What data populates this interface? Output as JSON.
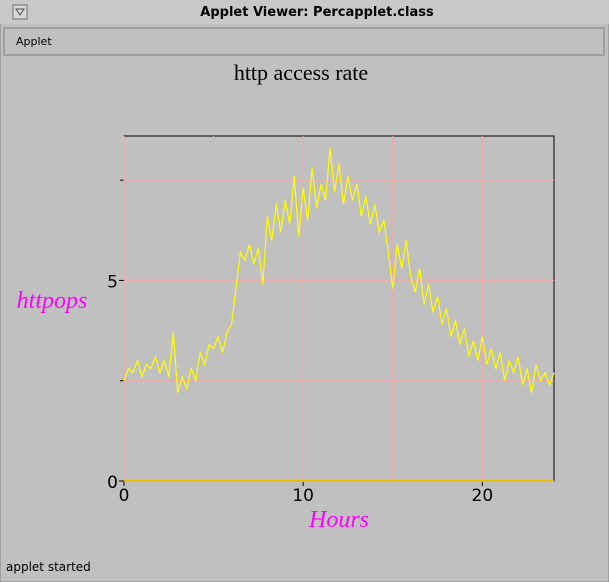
{
  "window": {
    "title": "Applet Viewer: Percapplet.class",
    "menu": "Applet",
    "status": "applet started"
  },
  "chart_data": {
    "type": "line",
    "title": "http access rate",
    "xlabel": "Hours",
    "ylabel": "httpops",
    "x": [
      0,
      0.25,
      0.5,
      0.75,
      1,
      1.25,
      1.5,
      1.75,
      2,
      2.25,
      2.5,
      2.75,
      3,
      3.25,
      3.5,
      3.75,
      4,
      4.25,
      4.5,
      4.75,
      5,
      5.25,
      5.5,
      5.75,
      6,
      6.25,
      6.5,
      6.75,
      7,
      7.25,
      7.5,
      7.75,
      8,
      8.25,
      8.5,
      8.75,
      9,
      9.25,
      9.5,
      9.75,
      10,
      10.25,
      10.5,
      10.75,
      11,
      11.25,
      11.5,
      11.75,
      12,
      12.25,
      12.5,
      12.75,
      13,
      13.25,
      13.5,
      13.75,
      14,
      14.25,
      14.5,
      14.75,
      15,
      15.25,
      15.5,
      15.75,
      16,
      16.25,
      16.5,
      16.75,
      17,
      17.25,
      17.5,
      17.75,
      18,
      18.25,
      18.5,
      18.75,
      19,
      19.25,
      19.5,
      19.75,
      20,
      20.25,
      20.5,
      20.75,
      21,
      21.25,
      21.5,
      21.75,
      22,
      22.25,
      22.5,
      22.75,
      23,
      23.25,
      23.5,
      23.75,
      24
    ],
    "values": [
      2.5,
      2.8,
      2.7,
      3.0,
      2.6,
      2.9,
      2.8,
      3.1,
      2.7,
      3.0,
      2.6,
      3.7,
      2.2,
      2.6,
      2.3,
      2.8,
      2.5,
      3.2,
      2.9,
      3.4,
      3.3,
      3.6,
      3.2,
      3.7,
      3.9,
      4.8,
      5.7,
      5.5,
      5.9,
      5.4,
      5.8,
      4.9,
      6.6,
      6.0,
      6.9,
      6.2,
      7.0,
      6.4,
      7.6,
      6.1,
      7.3,
      6.5,
      7.8,
      6.8,
      7.4,
      7.0,
      8.3,
      7.2,
      7.9,
      6.9,
      7.6,
      7.0,
      7.4,
      6.6,
      7.1,
      6.4,
      6.9,
      6.2,
      6.5,
      5.7,
      4.8,
      5.9,
      5.3,
      6.0,
      5.1,
      4.7,
      5.3,
      4.4,
      4.9,
      4.2,
      4.6,
      3.9,
      4.3,
      3.6,
      4.0,
      3.4,
      3.8,
      3.1,
      3.5,
      3.0,
      3.6,
      2.9,
      3.3,
      2.8,
      3.2,
      2.5,
      3.0,
      2.7,
      3.1,
      2.4,
      2.8,
      2.2,
      2.9,
      2.5,
      2.7,
      2.4,
      2.7
    ],
    "color": "#ffff00",
    "xlim": [
      0,
      24
    ],
    "ylim": [
      0,
      8.6
    ],
    "xticks": [
      0,
      10,
      20
    ],
    "yticks": [
      0,
      5
    ],
    "x_minor_ticks": [
      5,
      15
    ],
    "y_minor_ticks": [
      2.5,
      7.5
    ],
    "grid": true,
    "grid_color": "#f0a8a8",
    "label_color": "#ff00ff"
  }
}
